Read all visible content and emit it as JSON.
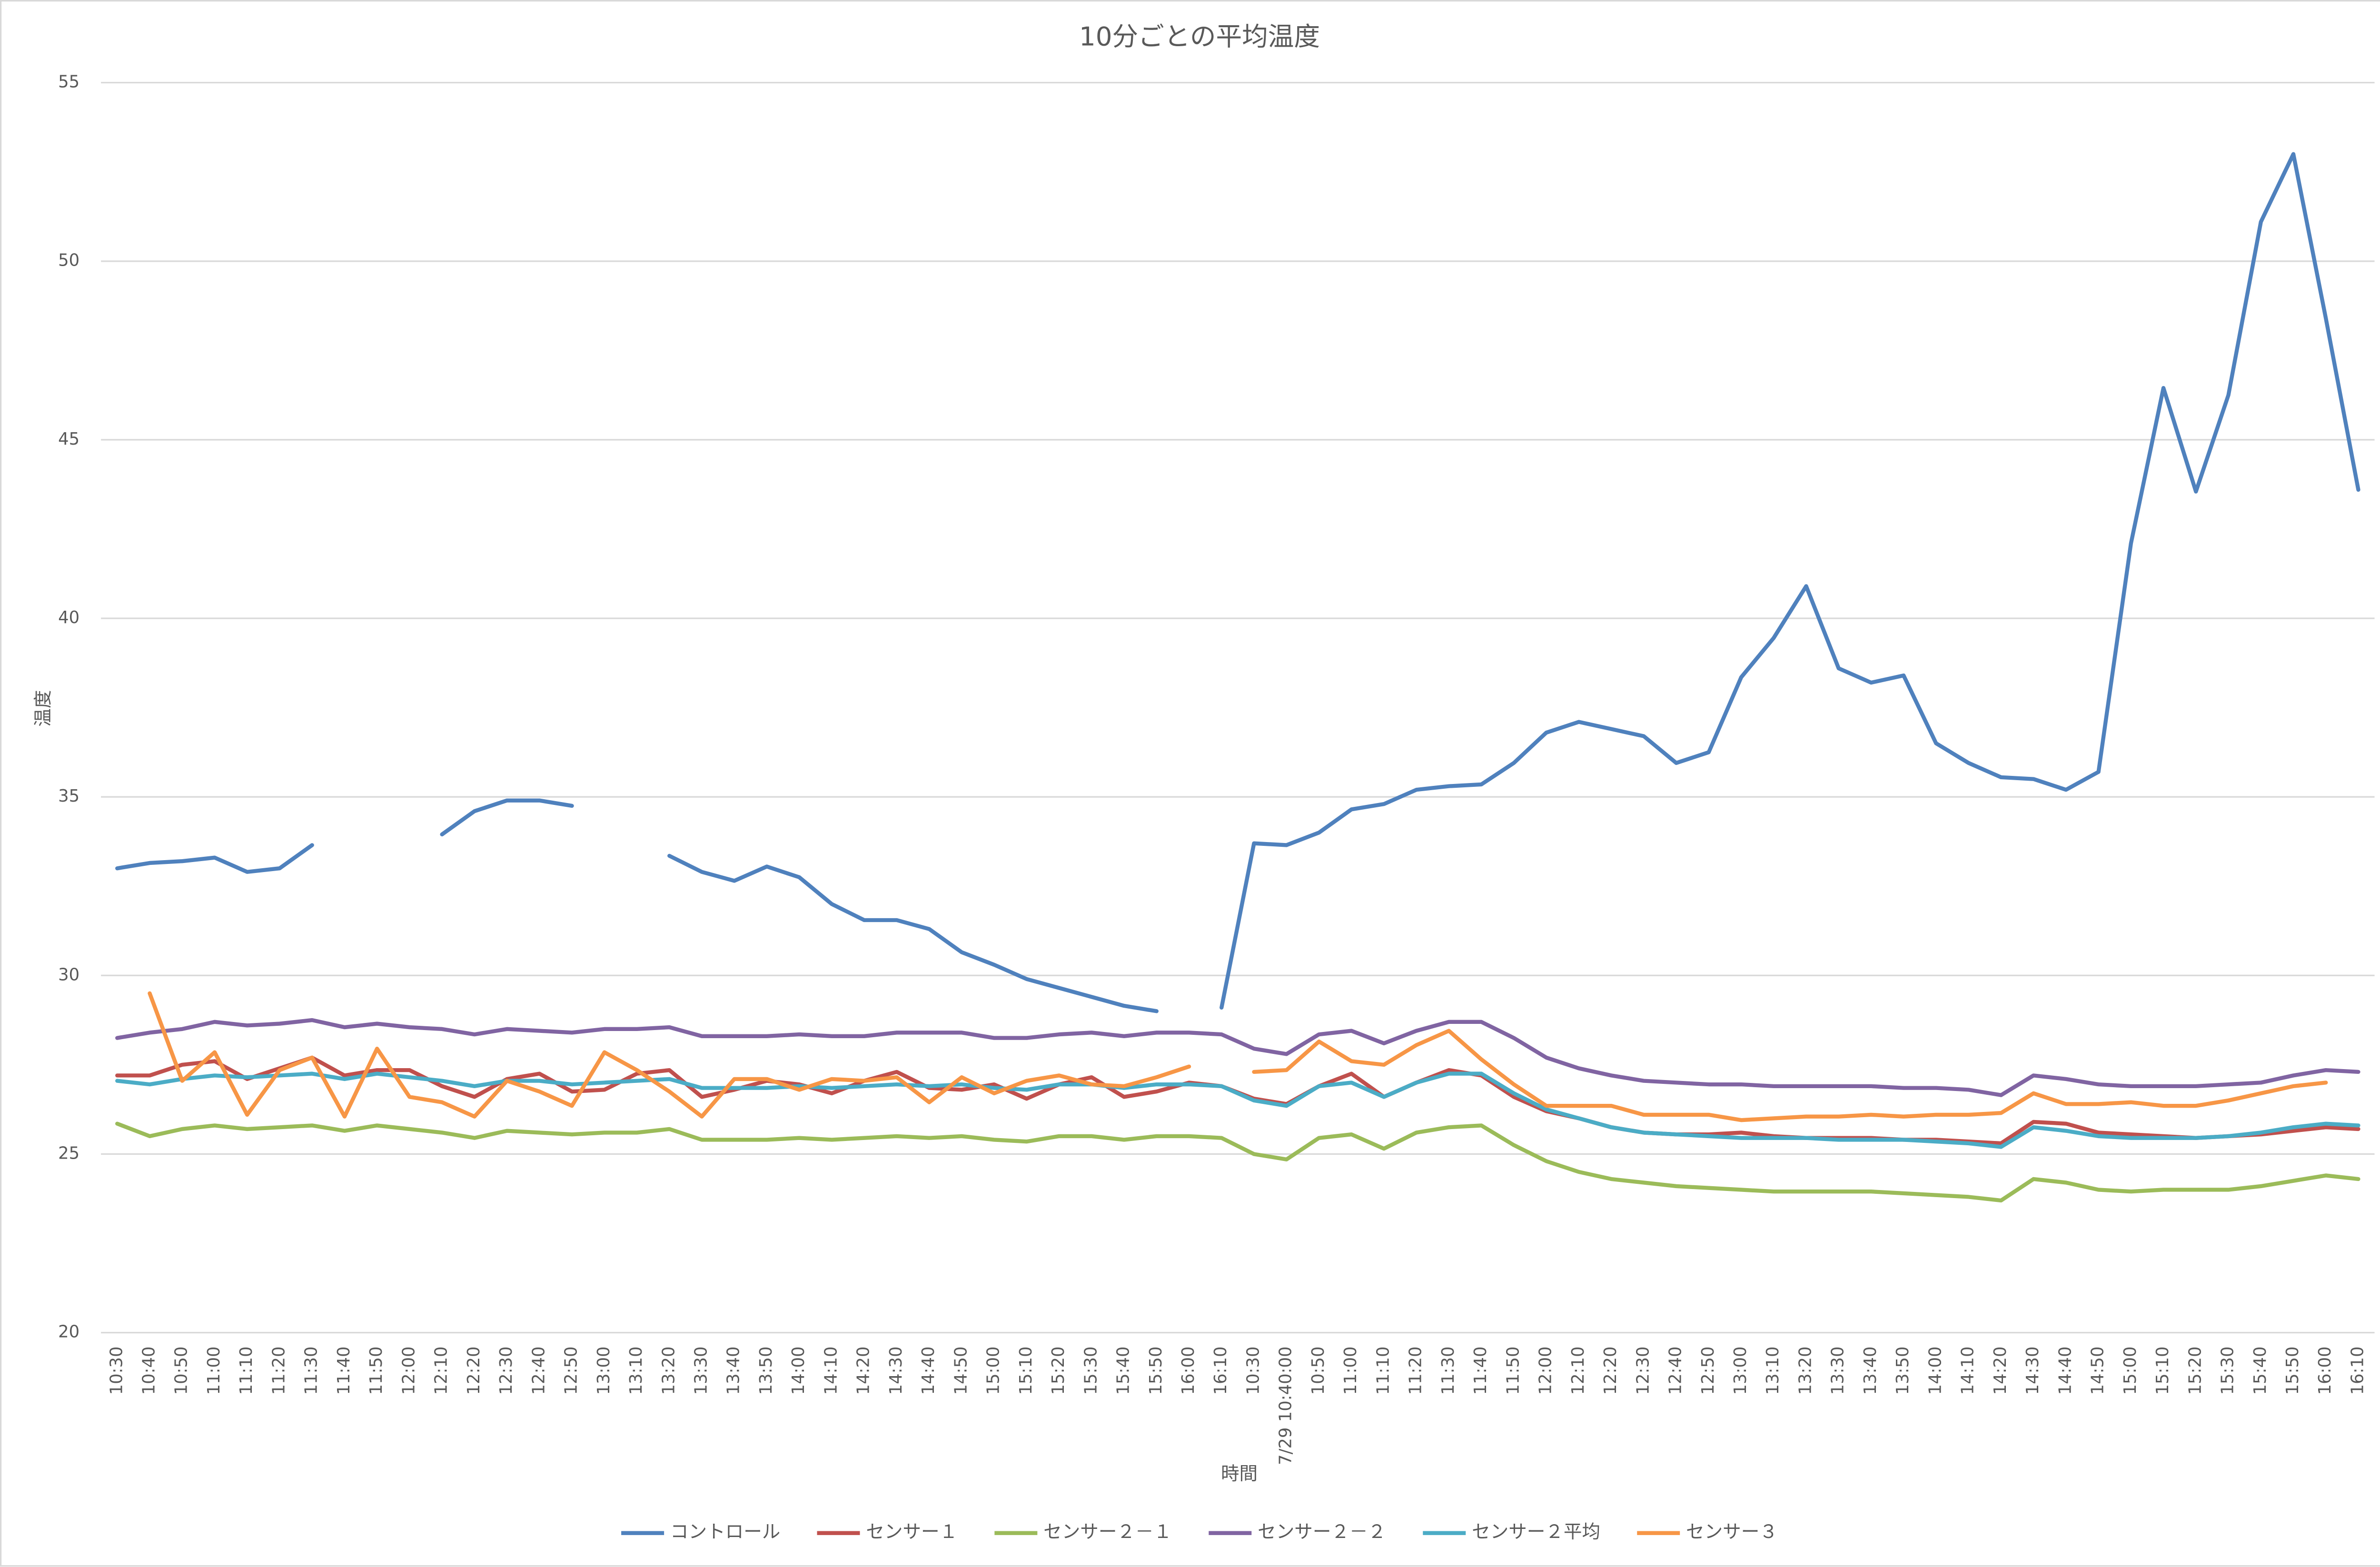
{
  "chart_data": {
    "type": "line",
    "title": "10分ごとの平均温度",
    "y_label": "温度",
    "x_label": "時間",
    "ylim": [
      20,
      55
    ],
    "yticks": [
      20,
      25,
      30,
      35,
      40,
      45,
      50,
      55
    ],
    "grid": true,
    "legend": "bottom",
    "categories": [
      "10:30",
      "10:40",
      "10:50",
      "11:00",
      "11:10",
      "11:20",
      "11:30",
      "11:40",
      "11:50",
      "12:00",
      "12:10",
      "12:20",
      "12:30",
      "12:40",
      "12:50",
      "13:00",
      "13:10",
      "13:20",
      "13:30",
      "13:40",
      "13:50",
      "14:00",
      "14:10",
      "14:20",
      "14:30",
      "14:40",
      "14:50",
      "15:00",
      "15:10",
      "15:20",
      "15:30",
      "15:40",
      "15:50",
      "16:00",
      "16:10",
      "10:30",
      "7/29 10:40:00",
      "10:50",
      "11:00",
      "11:10",
      "11:20",
      "11:30",
      "11:40",
      "11:50",
      "12:00",
      "12:10",
      "12:20",
      "12:30",
      "12:40",
      "12:50",
      "13:00",
      "13:10",
      "13:20",
      "13:30",
      "13:40",
      "13:50",
      "14:00",
      "14:10",
      "14:20",
      "14:30",
      "14:40",
      "14:50",
      "15:00",
      "15:10",
      "15:20",
      "15:30",
      "15:40",
      "15:50",
      "16:00",
      "16:10"
    ],
    "series": [
      {
        "name": "コントロール",
        "color": "#4f81bd",
        "values": [
          33.0,
          33.15,
          33.2,
          33.3,
          32.9,
          33.0,
          33.65,
          null,
          null,
          null,
          33.95,
          34.6,
          34.9,
          34.9,
          34.75,
          null,
          null,
          33.35,
          32.9,
          32.65,
          33.05,
          32.75,
          32.0,
          31.55,
          31.55,
          31.3,
          30.65,
          30.3,
          29.9,
          29.65,
          29.4,
          29.15,
          29.0,
          null,
          29.1,
          33.7,
          33.65,
          34.0,
          34.65,
          34.8,
          35.2,
          35.3,
          35.35,
          35.95,
          36.8,
          37.1,
          36.9,
          36.7,
          35.95,
          36.25,
          38.35,
          39.45,
          40.9,
          38.6,
          38.2,
          38.4,
          36.5,
          35.95,
          35.55,
          35.5,
          35.2,
          35.7,
          42.1,
          46.45,
          43.55,
          46.25,
          51.1,
          53.0,
          48.4,
          43.6
        ]
      },
      {
        "name": "センサー１",
        "color": "#c0504d",
        "values": [
          27.2,
          27.2,
          27.5,
          27.6,
          27.1,
          27.4,
          27.7,
          27.2,
          27.35,
          27.35,
          26.9,
          26.6,
          27.1,
          27.25,
          26.75,
          26.8,
          27.25,
          27.35,
          26.6,
          26.8,
          27.05,
          26.95,
          26.7,
          27.05,
          27.3,
          26.85,
          26.8,
          26.95,
          26.55,
          26.95,
          27.15,
          26.6,
          26.75,
          27.0,
          26.9,
          26.55,
          26.4,
          26.9,
          27.25,
          26.6,
          27.0,
          27.35,
          27.2,
          26.6,
          26.2,
          26.0,
          25.75,
          25.6,
          25.55,
          25.55,
          25.6,
          25.5,
          25.45,
          25.45,
          25.45,
          25.4,
          25.4,
          25.35,
          25.3,
          25.9,
          25.85,
          25.6,
          25.55,
          25.5,
          25.45,
          25.5,
          25.55,
          25.65,
          25.75,
          25.7
        ]
      },
      {
        "name": "センサー２－１",
        "color": "#9bbb59",
        "values": [
          25.85,
          25.5,
          25.7,
          25.8,
          25.7,
          25.75,
          25.8,
          25.65,
          25.8,
          25.7,
          25.6,
          25.45,
          25.65,
          25.6,
          25.55,
          25.6,
          25.6,
          25.7,
          25.4,
          25.4,
          25.4,
          25.45,
          25.4,
          25.45,
          25.5,
          25.45,
          25.5,
          25.4,
          25.35,
          25.5,
          25.5,
          25.4,
          25.5,
          25.5,
          25.45,
          25.0,
          24.85,
          25.45,
          25.55,
          25.15,
          25.6,
          25.75,
          25.8,
          25.25,
          24.8,
          24.5,
          24.3,
          24.2,
          24.1,
          24.05,
          24.0,
          23.95,
          23.95,
          23.95,
          23.95,
          23.9,
          23.85,
          23.8,
          23.7,
          24.3,
          24.2,
          24.0,
          23.95,
          24.0,
          24.0,
          24.0,
          24.1,
          24.25,
          24.4,
          24.3
        ]
      },
      {
        "name": "センサー２－２",
        "color": "#8064a2",
        "values": [
          28.25,
          28.4,
          28.5,
          28.7,
          28.6,
          28.65,
          28.75,
          28.55,
          28.65,
          28.55,
          28.5,
          28.35,
          28.5,
          28.45,
          28.4,
          28.5,
          28.5,
          28.55,
          28.3,
          28.3,
          28.3,
          28.35,
          28.3,
          28.3,
          28.4,
          28.4,
          28.4,
          28.25,
          28.25,
          28.35,
          28.4,
          28.3,
          28.4,
          28.4,
          28.35,
          27.95,
          27.8,
          28.35,
          28.45,
          28.1,
          28.45,
          28.7,
          28.7,
          28.25,
          27.7,
          27.4,
          27.2,
          27.05,
          27.0,
          26.95,
          26.95,
          26.9,
          26.9,
          26.9,
          26.9,
          26.85,
          26.85,
          26.8,
          26.65,
          27.2,
          27.1,
          26.95,
          26.9,
          26.9,
          26.9,
          26.95,
          27.0,
          27.2,
          27.35,
          27.3
        ]
      },
      {
        "name": "センサー２平均",
        "color": "#4bacc6",
        "values": [
          27.05,
          26.95,
          27.1,
          27.2,
          27.15,
          27.2,
          27.25,
          27.1,
          27.25,
          27.15,
          27.05,
          26.9,
          27.05,
          27.05,
          26.95,
          27.0,
          27.05,
          27.1,
          26.85,
          26.85,
          26.85,
          26.9,
          26.85,
          26.9,
          26.95,
          26.9,
          26.95,
          26.85,
          26.8,
          26.95,
          26.95,
          26.85,
          26.95,
          26.95,
          26.9,
          26.5,
          26.35,
          26.9,
          27.0,
          26.6,
          27.0,
          27.25,
          27.25,
          26.7,
          26.25,
          26.0,
          25.75,
          25.6,
          25.55,
          25.5,
          25.45,
          25.45,
          25.45,
          25.4,
          25.4,
          25.4,
          25.35,
          25.3,
          25.2,
          25.75,
          25.65,
          25.5,
          25.45,
          25.45,
          25.45,
          25.5,
          25.6,
          25.75,
          25.85,
          25.8
        ]
      },
      {
        "name": "センサー３",
        "color": "#f79646",
        "values": [
          null,
          29.5,
          27.05,
          27.85,
          26.1,
          27.35,
          27.7,
          26.05,
          27.95,
          26.6,
          26.45,
          26.05,
          27.05,
          26.75,
          26.35,
          27.85,
          27.35,
          26.75,
          26.05,
          27.1,
          27.1,
          26.8,
          27.1,
          27.05,
          27.15,
          26.45,
          27.15,
          26.7,
          27.05,
          27.2,
          26.95,
          26.9,
          27.15,
          27.45,
          null,
          27.3,
          27.35,
          28.15,
          27.6,
          27.5,
          28.05,
          28.45,
          27.65,
          26.95,
          26.35,
          26.35,
          26.35,
          26.1,
          26.1,
          26.1,
          25.95,
          26.0,
          26.05,
          26.05,
          26.1,
          26.05,
          26.1,
          26.1,
          26.15,
          26.7,
          26.4,
          26.4,
          26.45,
          26.35,
          26.35,
          26.5,
          26.7,
          26.9,
          27.0,
          null
        ]
      }
    ]
  }
}
